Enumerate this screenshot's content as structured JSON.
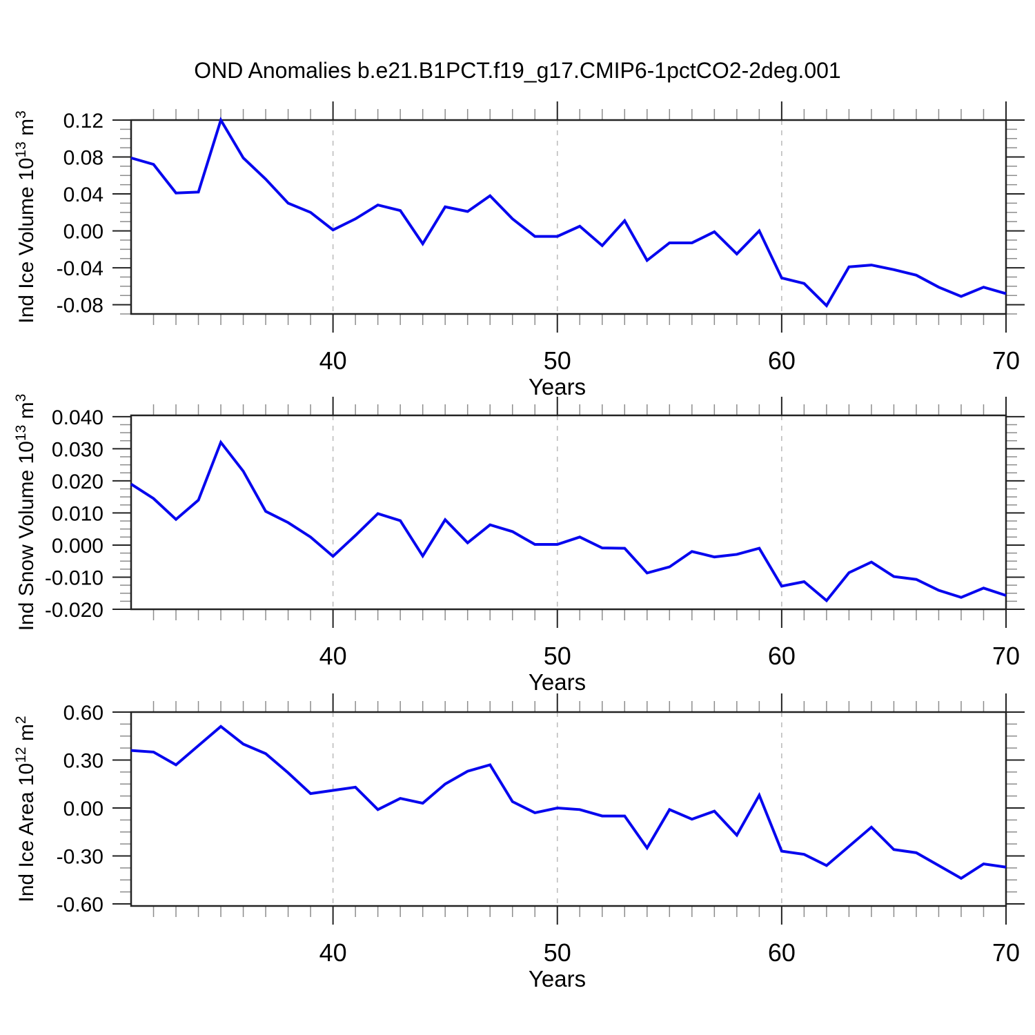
{
  "title": "OND Anomalies b.e21.B1PCT.f19_g17.CMIP6-1pctCO2-2deg.001",
  "line_color": "#0707ee",
  "axis_color": "#222222",
  "minor_tick_color": "#8c8c8c",
  "grid_color": "#bdbdbd",
  "chart_data": {
    "type": "line",
    "x_label": "Years",
    "years": [
      31,
      32,
      33,
      34,
      35,
      36,
      37,
      38,
      39,
      40,
      41,
      42,
      43,
      44,
      45,
      46,
      47,
      48,
      49,
      50,
      51,
      52,
      53,
      54,
      55,
      56,
      57,
      58,
      59,
      60,
      61,
      62,
      63,
      64,
      65,
      66,
      67,
      68,
      69,
      70
    ],
    "x_ticks": [
      40,
      50,
      60,
      70
    ],
    "x_minor_step": 1,
    "grid_x": [
      40,
      50,
      60
    ],
    "panels": [
      {
        "name": "ind-ice-volume",
        "ylabel_pre": "Ind Ice Volume 10",
        "ylabel_sup1": "13",
        "ylabel_mid": " m",
        "ylabel_sup2": "3",
        "ylim": [
          -0.09,
          0.12
        ],
        "y_ticks": [
          0.12,
          0.08,
          0.04,
          0.0,
          -0.04,
          -0.08
        ],
        "y_tick_decimals": 2,
        "y_minor_step": 0.01,
        "values": [
          0.079,
          0.072,
          0.041,
          0.042,
          0.12,
          0.079,
          0.056,
          0.03,
          0.02,
          0.001,
          0.013,
          0.028,
          0.022,
          -0.014,
          0.026,
          0.021,
          0.038,
          0.013,
          -0.006,
          -0.006,
          0.005,
          -0.016,
          0.011,
          -0.032,
          -0.013,
          -0.013,
          -0.001,
          -0.025,
          0.0,
          -0.051,
          -0.057,
          -0.081,
          -0.039,
          -0.037,
          -0.042,
          -0.048,
          -0.061,
          -0.071,
          -0.061,
          -0.068
        ]
      },
      {
        "name": "ind-snow-volume",
        "ylabel_pre": "Ind Snow Volume 10",
        "ylabel_sup1": "13",
        "ylabel_mid": " m",
        "ylabel_sup2": "3",
        "ylim": [
          -0.02,
          0.0404
        ],
        "y_ticks": [
          0.04,
          0.03,
          0.02,
          0.01,
          0.0,
          -0.01,
          -0.02
        ],
        "y_tick_decimals": 3,
        "y_minor_step": 0.0025,
        "values": [
          0.019,
          0.0145,
          0.008,
          0.014,
          0.032,
          0.023,
          0.0105,
          0.007,
          0.0025,
          -0.0035,
          0.003,
          0.0098,
          0.0076,
          -0.0034,
          0.0079,
          0.0007,
          0.0063,
          0.0042,
          0.0002,
          0.0002,
          0.0025,
          -0.0009,
          -0.001,
          -0.0087,
          -0.0068,
          -0.002,
          -0.0037,
          -0.0029,
          -0.001,
          -0.0128,
          -0.0114,
          -0.0173,
          -0.0086,
          -0.0053,
          -0.0098,
          -0.0107,
          -0.0141,
          -0.0163,
          -0.0134,
          -0.0157
        ]
      },
      {
        "name": "ind-ice-area",
        "ylabel_pre": "Ind Ice Area 10",
        "ylabel_sup1": "12",
        "ylabel_mid": " m",
        "ylabel_sup2": "2",
        "ylim": [
          -0.613,
          0.6
        ],
        "y_ticks": [
          0.6,
          0.3,
          0.0,
          -0.3,
          -0.6
        ],
        "y_tick_decimals": 2,
        "y_minor_step": 0.075,
        "values": [
          0.36,
          0.35,
          0.27,
          0.39,
          0.51,
          0.4,
          0.34,
          0.22,
          0.09,
          0.11,
          0.13,
          -0.01,
          0.06,
          0.03,
          0.15,
          0.23,
          0.27,
          0.04,
          -0.03,
          0.0,
          -0.01,
          -0.05,
          -0.05,
          -0.25,
          -0.01,
          -0.07,
          -0.02,
          -0.17,
          0.08,
          -0.27,
          -0.29,
          -0.36,
          -0.24,
          -0.12,
          -0.26,
          -0.28,
          -0.36,
          -0.44,
          -0.35,
          -0.37
        ]
      }
    ]
  }
}
